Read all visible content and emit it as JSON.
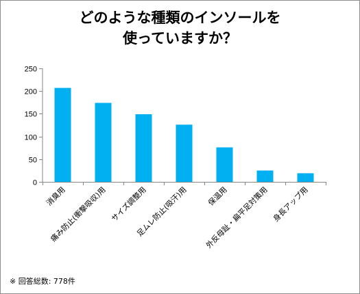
{
  "chart_data": {
    "type": "bar",
    "title_lines": [
      "どのような種類のインソールを",
      "使っていますか？"
    ],
    "categories": [
      "消臭用",
      "痛み防止(衝撃吸収)用",
      "サイズ調整用",
      "足ムレ防止(吸汗)用",
      "保温用",
      "外反母趾・扁平足対策用",
      "身長アップ用"
    ],
    "values": [
      207,
      174,
      149,
      126,
      76,
      25,
      19
    ],
    "ylim": [
      0,
      250
    ],
    "yticks": [
      0,
      50,
      100,
      150,
      200,
      250
    ],
    "bar_color": "#00b0f0",
    "grid": false,
    "legend": "none"
  },
  "footnote": "※ 回答総数: 778件"
}
